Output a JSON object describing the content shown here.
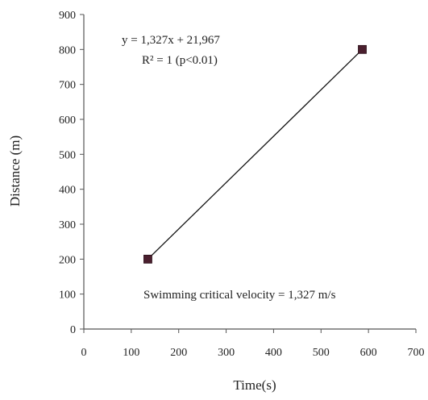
{
  "chart_data": {
    "type": "scatter",
    "title": "",
    "xlabel": "Time(s)",
    "ylabel": "Distance (m)",
    "xlim": [
      0,
      700
    ],
    "ylim": [
      0,
      900
    ],
    "xticks": [
      0,
      100,
      200,
      300,
      400,
      500,
      600,
      700
    ],
    "yticks": [
      0,
      100,
      200,
      300,
      400,
      500,
      600,
      700,
      800,
      900
    ],
    "grid": false,
    "series": [
      {
        "x": [
          135,
          587
        ],
        "y": [
          200,
          800
        ],
        "marker_color": "#4a1f2e"
      }
    ],
    "trendline": {
      "x": [
        135,
        587
      ],
      "y": [
        200,
        800
      ],
      "color": "#111111"
    },
    "annotations": {
      "equation": "y = 1,327x + 21,967",
      "r_squared": "R² = 1 (p<0.01)",
      "note": "Swimming critical velocity = 1,327 m/s"
    }
  }
}
